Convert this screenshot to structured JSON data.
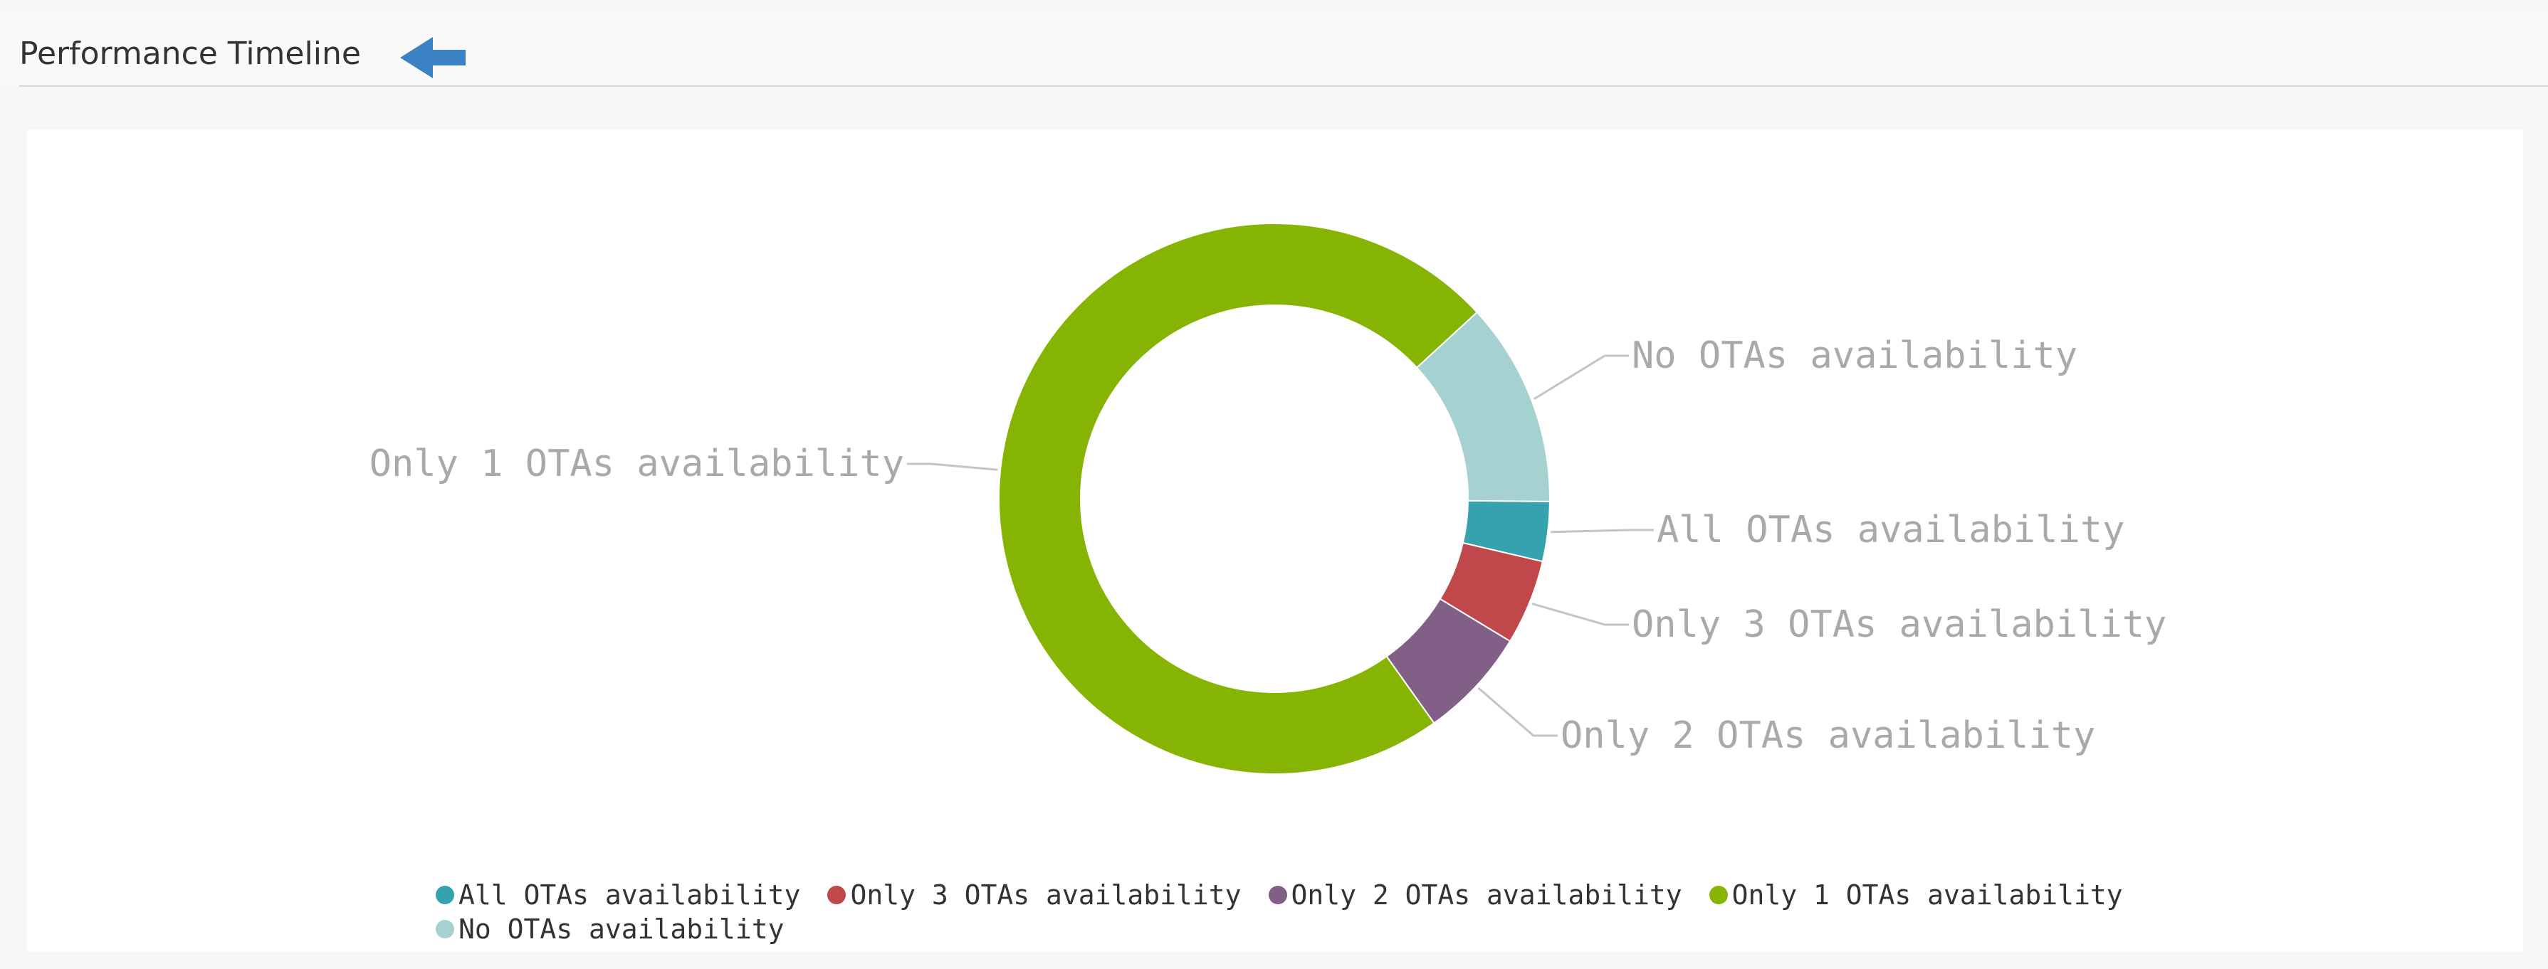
{
  "header": {
    "title": "Performance Timeline",
    "back_icon": "left-arrow-icon",
    "back_icon_color": "#3a82c4"
  },
  "chart_data": {
    "type": "pie",
    "variant": "donut",
    "title": "",
    "categories": [
      "All OTAs availability",
      "Only 3 OTAs availability",
      "Only 2 OTAs availability",
      "Only 1 OTAs availability",
      "No OTAs availability"
    ],
    "values": [
      3.5,
      5,
      6.5,
      73,
      12
    ],
    "unit": "%",
    "colors": [
      "#36a2b0",
      "#c0484a",
      "#815f86",
      "#86b402",
      "#a6d1d1"
    ],
    "legend_position": "bottom",
    "slice_labels": true
  }
}
